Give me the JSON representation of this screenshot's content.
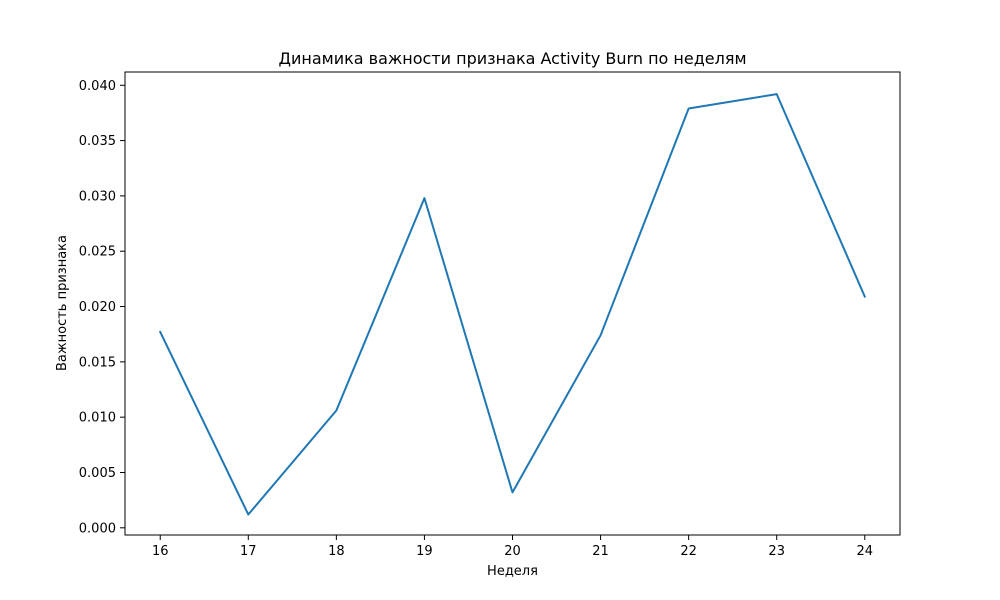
{
  "chart_data": {
    "type": "line",
    "title": "Динамика важности признака Activity Burn по неделям",
    "xlabel": "Неделя",
    "ylabel": "Важность признака",
    "x": [
      16,
      17,
      18,
      19,
      20,
      21,
      22,
      23,
      24
    ],
    "series": [
      {
        "values": [
          0.0177,
          0.0012,
          0.0106,
          0.0298,
          0.0032,
          0.0174,
          0.0379,
          0.0392,
          0.0209
        ]
      }
    ],
    "xlim": [
      15.6,
      24.4
    ],
    "ylim": [
      -0.00065,
      0.0412
    ],
    "xticks": [
      "16",
      "17",
      "18",
      "19",
      "20",
      "21",
      "22",
      "23",
      "24"
    ],
    "yticks": [
      "0.000",
      "0.005",
      "0.010",
      "0.015",
      "0.020",
      "0.025",
      "0.030",
      "0.035",
      "0.040"
    ],
    "grid": false,
    "line_color": "#1f77b4"
  }
}
